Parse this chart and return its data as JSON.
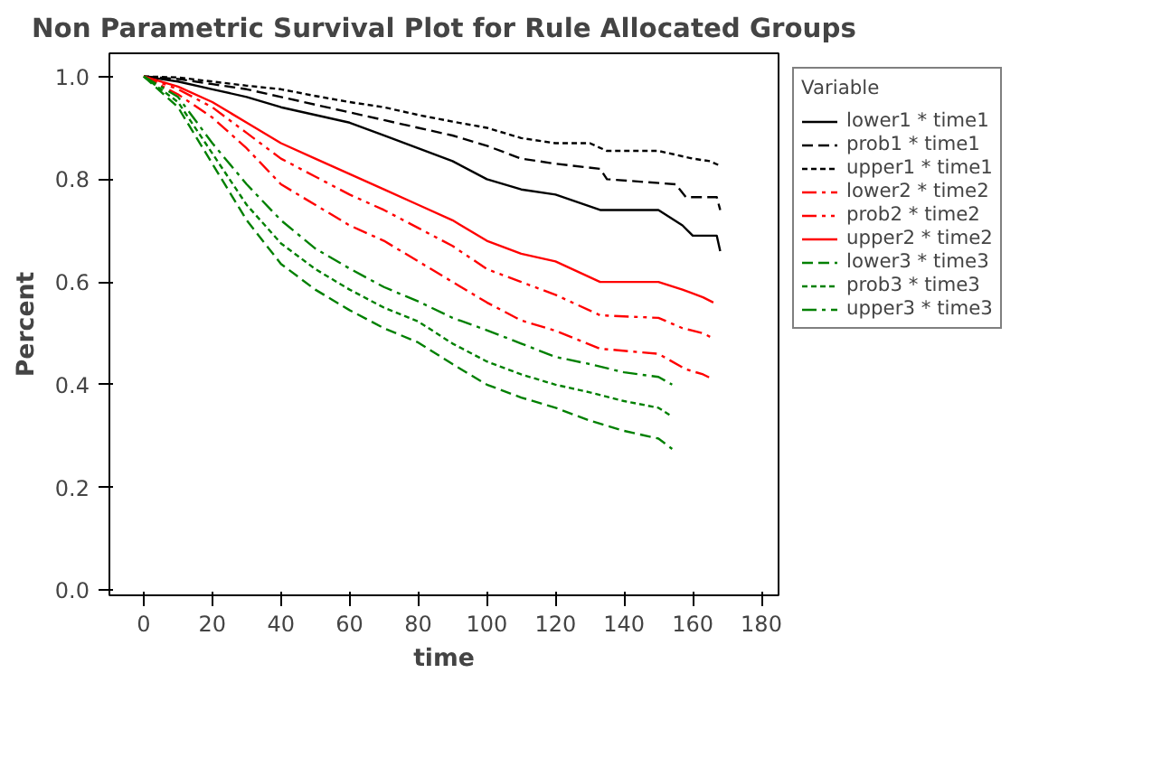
{
  "chart_data": {
    "type": "line",
    "title": "Non Parametric Survival Plot for Rule Allocated Groups",
    "xlabel": "time",
    "ylabel": "Percent",
    "legend_title": "Variable",
    "legend": "top right",
    "grid": false,
    "xlim": [
      -10,
      185
    ],
    "ylim": [
      -0.01,
      1.045
    ],
    "xticks": [
      0,
      20,
      40,
      60,
      80,
      100,
      120,
      140,
      160,
      180
    ],
    "yticks": [
      {
        "value": 0,
        "label": "0.0"
      },
      {
        "value": 0.2,
        "label": "0.2"
      },
      {
        "value": 0.4,
        "label": "0.4"
      },
      {
        "value": 0.6,
        "label": "0.6"
      },
      {
        "value": 0.8,
        "label": "0.8"
      },
      {
        "value": 1,
        "label": "1.0"
      }
    ],
    "series": [
      {
        "name": "lower1 * time1",
        "color": "#000000",
        "line_style": "solid",
        "x": [
          0,
          10,
          20,
          30,
          40,
          50,
          60,
          70,
          80,
          90,
          100,
          110,
          120,
          133,
          150,
          157,
          160,
          167,
          168
        ],
        "values": [
          1.0,
          0.99,
          0.975,
          0.96,
          0.94,
          0.925,
          0.91,
          0.885,
          0.86,
          0.835,
          0.8,
          0.78,
          0.77,
          0.74,
          0.74,
          0.71,
          0.69,
          0.69,
          0.66
        ]
      },
      {
        "name": "prob1 * time1",
        "color": "#000000",
        "line_style": "dashed",
        "x": [
          0,
          10,
          20,
          30,
          40,
          50,
          60,
          70,
          80,
          90,
          100,
          110,
          120,
          133,
          135,
          155,
          158,
          167,
          168
        ],
        "values": [
          1.0,
          0.995,
          0.985,
          0.975,
          0.96,
          0.945,
          0.93,
          0.915,
          0.9,
          0.885,
          0.865,
          0.84,
          0.83,
          0.82,
          0.8,
          0.79,
          0.765,
          0.765,
          0.74
        ]
      },
      {
        "name": "upper1 * time1",
        "color": "#000000",
        "line_style": "dotted",
        "x": [
          0,
          10,
          20,
          30,
          40,
          50,
          60,
          70,
          80,
          90,
          100,
          110,
          120,
          130,
          135,
          150,
          160,
          165,
          168
        ],
        "values": [
          1.0,
          0.998,
          0.99,
          0.982,
          0.975,
          0.962,
          0.95,
          0.94,
          0.925,
          0.912,
          0.9,
          0.88,
          0.87,
          0.87,
          0.855,
          0.855,
          0.84,
          0.835,
          0.826
        ]
      },
      {
        "name": "lower2 * time2",
        "color": "#ff0000",
        "line_style": "dashdot",
        "x": [
          0,
          10,
          20,
          30,
          40,
          50,
          60,
          70,
          80,
          90,
          100,
          110,
          120,
          133,
          150,
          158,
          163,
          166
        ],
        "values": [
          1.0,
          0.965,
          0.92,
          0.86,
          0.79,
          0.75,
          0.71,
          0.68,
          0.64,
          0.6,
          0.56,
          0.525,
          0.505,
          0.47,
          0.46,
          0.43,
          0.42,
          0.41
        ]
      },
      {
        "name": "prob2 * time2",
        "color": "#ff0000",
        "line_style": "dashdotdot",
        "x": [
          0,
          10,
          20,
          30,
          40,
          50,
          60,
          70,
          80,
          90,
          100,
          110,
          120,
          133,
          150,
          157,
          163,
          166
        ],
        "values": [
          1.0,
          0.975,
          0.94,
          0.89,
          0.84,
          0.805,
          0.77,
          0.74,
          0.705,
          0.67,
          0.625,
          0.6,
          0.575,
          0.535,
          0.53,
          0.51,
          0.5,
          0.49
        ]
      },
      {
        "name": "upper2 * time2",
        "color": "#ff0000",
        "line_style": "solid",
        "x": [
          0,
          10,
          20,
          30,
          40,
          50,
          60,
          70,
          80,
          90,
          100,
          110,
          120,
          133,
          150,
          157,
          163,
          166
        ],
        "values": [
          1.0,
          0.98,
          0.95,
          0.91,
          0.87,
          0.84,
          0.81,
          0.78,
          0.75,
          0.72,
          0.68,
          0.655,
          0.64,
          0.6,
          0.6,
          0.585,
          0.57,
          0.56
        ]
      },
      {
        "name": "lower3 * time3",
        "color": "#008000",
        "line_style": "dashed",
        "x": [
          0,
          10,
          20,
          30,
          40,
          50,
          60,
          70,
          80,
          90,
          100,
          110,
          120,
          130,
          140,
          150,
          154
        ],
        "values": [
          1.0,
          0.94,
          0.83,
          0.72,
          0.635,
          0.585,
          0.545,
          0.51,
          0.482,
          0.44,
          0.4,
          0.375,
          0.355,
          0.33,
          0.31,
          0.295,
          0.275
        ]
      },
      {
        "name": "prob3 * time3",
        "color": "#008000",
        "line_style": "dotted",
        "x": [
          0,
          10,
          20,
          30,
          40,
          50,
          60,
          70,
          80,
          90,
          100,
          110,
          120,
          130,
          140,
          150,
          154
        ],
        "values": [
          1.0,
          0.95,
          0.85,
          0.75,
          0.675,
          0.625,
          0.585,
          0.55,
          0.523,
          0.48,
          0.445,
          0.42,
          0.4,
          0.385,
          0.368,
          0.355,
          0.338
        ]
      },
      {
        "name": "upper3 * time3",
        "color": "#008000",
        "line_style": "dashdot",
        "x": [
          0,
          10,
          20,
          30,
          40,
          50,
          60,
          70,
          80,
          90,
          100,
          110,
          120,
          130,
          140,
          150,
          154
        ],
        "values": [
          1.0,
          0.96,
          0.87,
          0.79,
          0.72,
          0.665,
          0.626,
          0.59,
          0.562,
          0.53,
          0.506,
          0.48,
          0.454,
          0.44,
          0.424,
          0.415,
          0.4
        ]
      }
    ]
  }
}
